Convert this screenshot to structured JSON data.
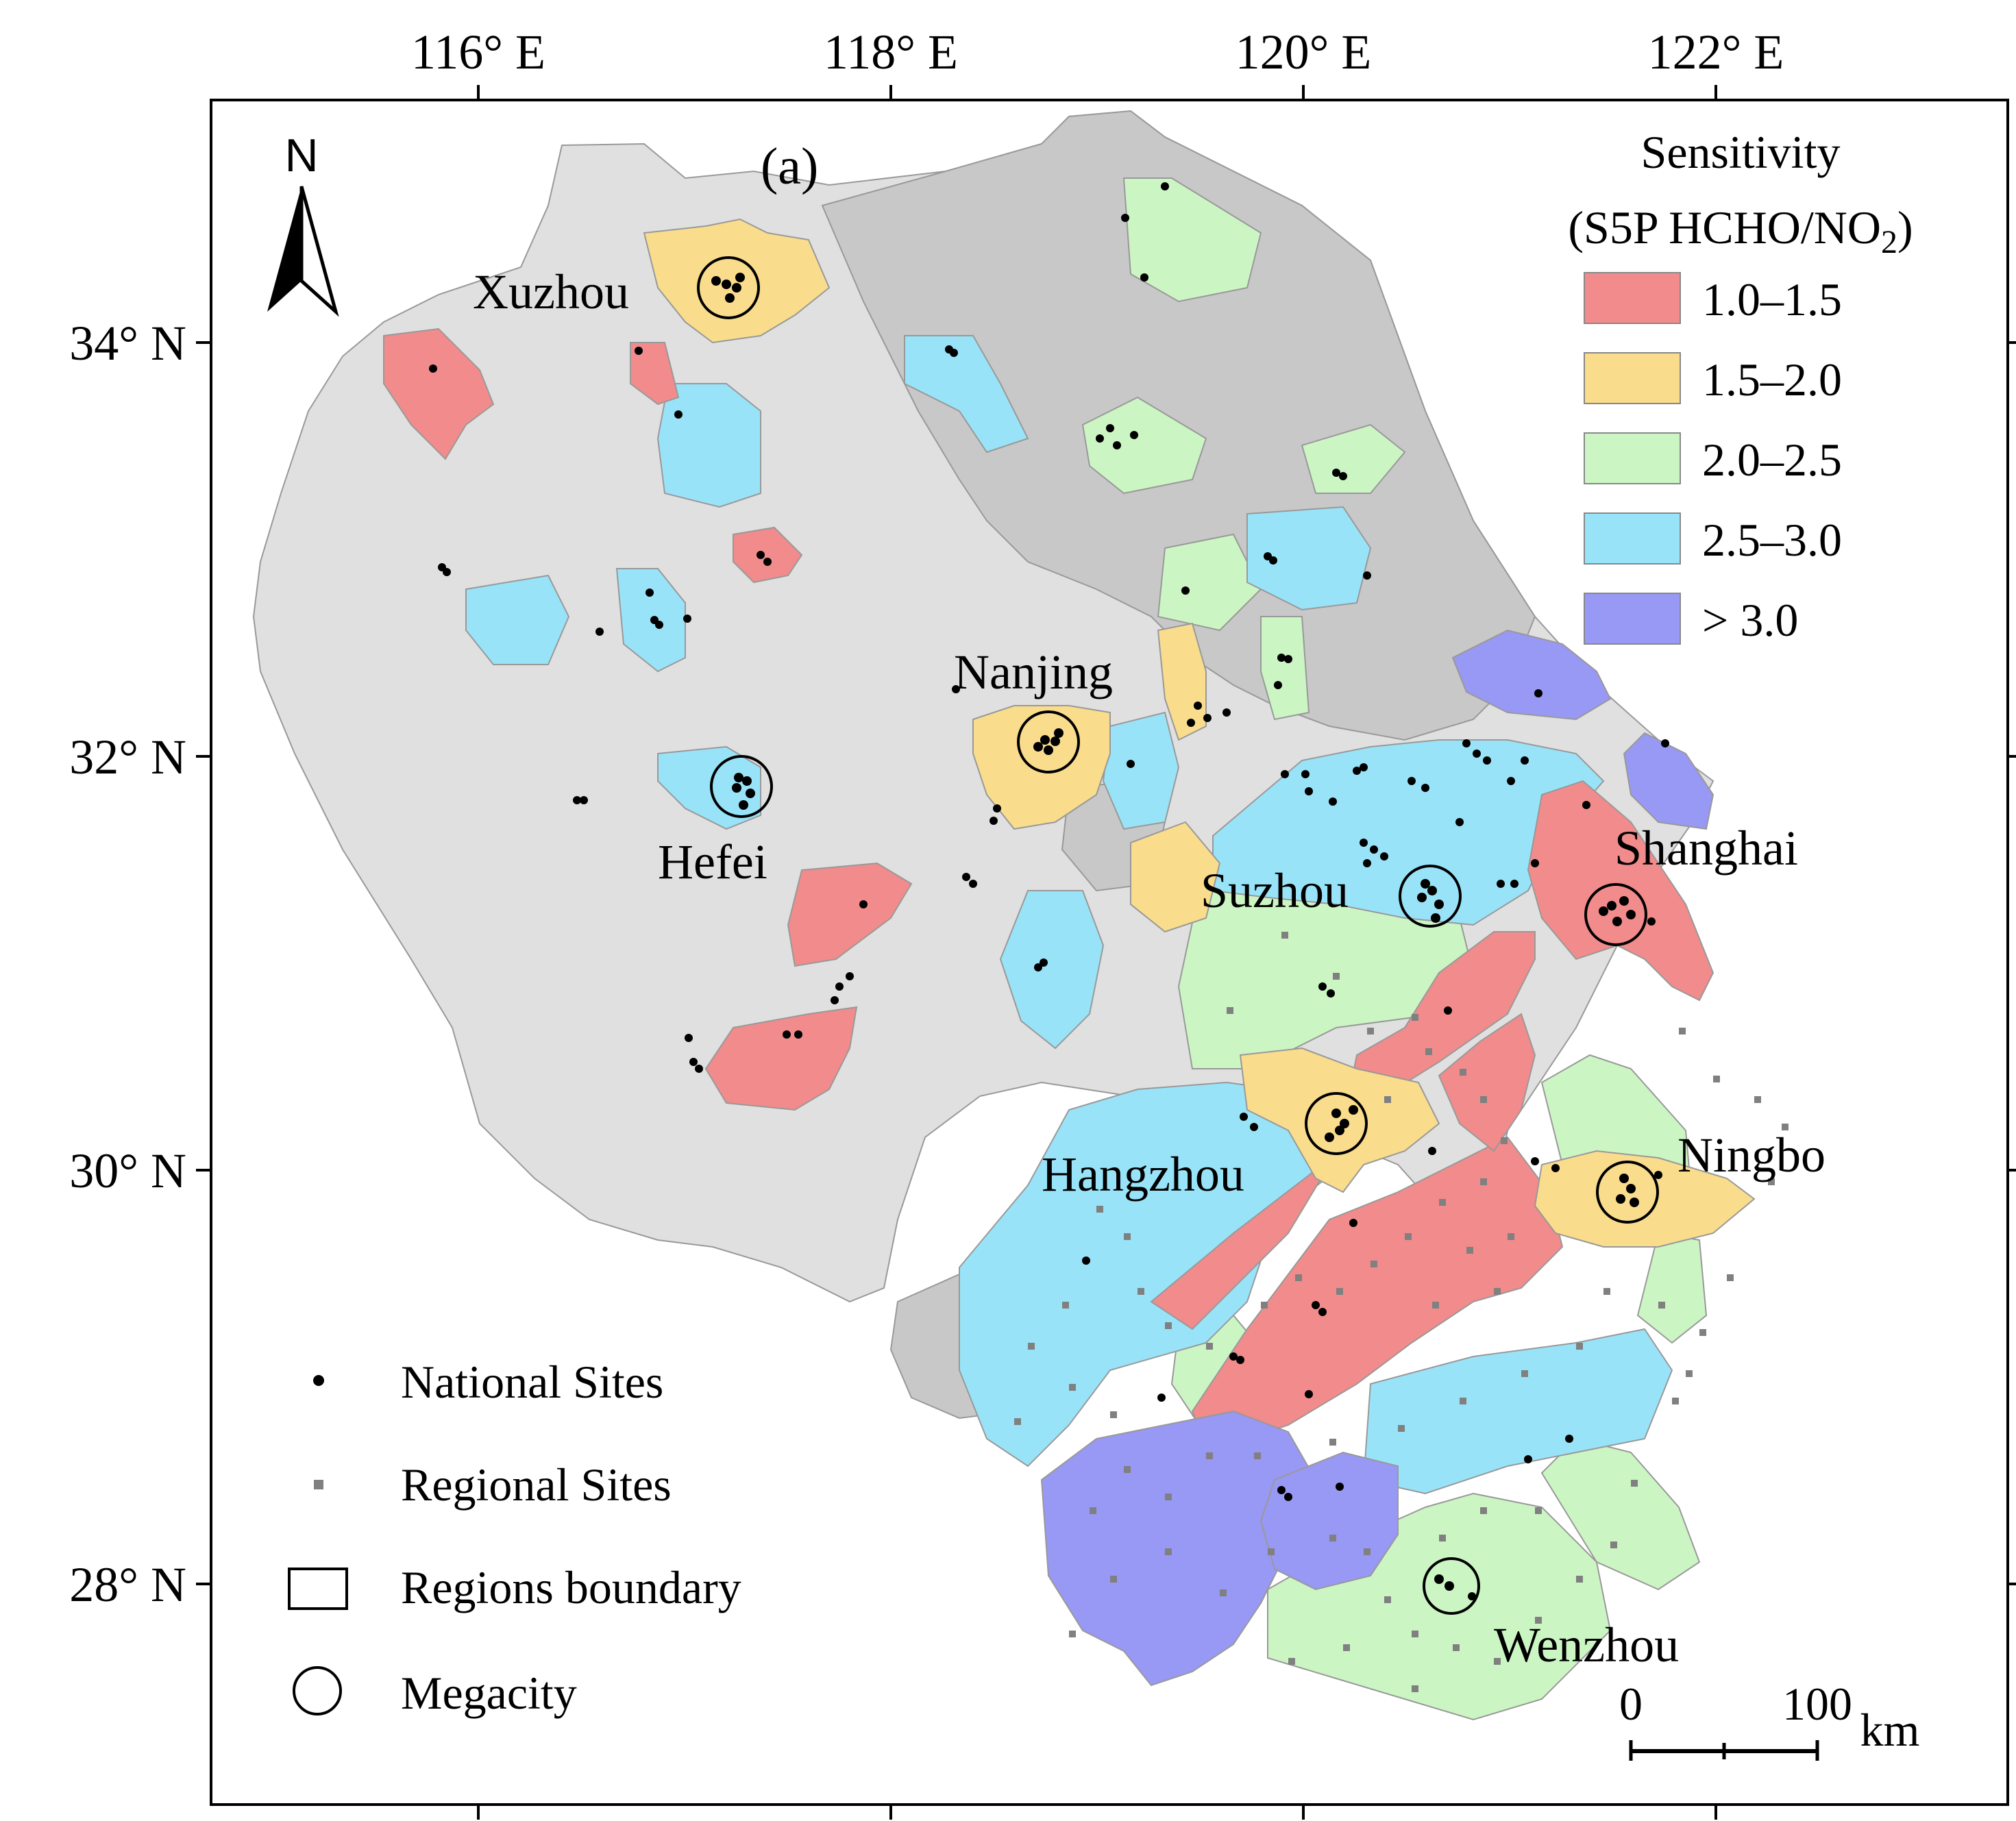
{
  "panel_label": "(a)",
  "north_label": "N",
  "axes": {
    "lon_ticks": [
      {
        "value": 116,
        "label": "116° E"
      },
      {
        "value": 118,
        "label": "118° E"
      },
      {
        "value": 120,
        "label": "120° E"
      },
      {
        "value": 122,
        "label": "122° E"
      }
    ],
    "lat_ticks": [
      {
        "value": 34,
        "label": "34° N"
      },
      {
        "value": 32,
        "label": "32° N"
      },
      {
        "value": 30,
        "label": "30° N"
      },
      {
        "value": 28,
        "label": "28° N"
      }
    ]
  },
  "legend": {
    "title_line1": "Sensitivity",
    "title_line2_main": "(S5P HCHO/NO",
    "title_line2_sub": "2",
    "title_line2_end": ")",
    "classes": [
      {
        "label": "1.0–1.5",
        "color": "#F28B8B"
      },
      {
        "label": "1.5–2.0",
        "color": "#F9DC8C"
      },
      {
        "label": "2.0–2.5",
        "color": "#CCF5C4"
      },
      {
        "label": "2.5–3.0",
        "color": "#99E3F9"
      },
      {
        "label": "> 3.0",
        "color": "#9898F5"
      }
    ],
    "no_data_color": "#E0E0E0",
    "no_data_dark_color": "#C8C8C8"
  },
  "symbol_legend": {
    "national": "National Sites",
    "regional": "Regional Sites",
    "boundary": "Regions boundary",
    "megacity": "Megacity"
  },
  "cities": {
    "xuzhou": "Xuzhou",
    "nanjing": "Nanjing",
    "hefei": "Hefei",
    "suzhou": "Suzhou",
    "shanghai": "Shanghai",
    "hangzhou": "Hangzhou",
    "ningbo": "Ningbo",
    "wenzhou": "Wenzhou"
  },
  "scale_bar": {
    "zero": "0",
    "hundred": "100",
    "unit": "km"
  }
}
